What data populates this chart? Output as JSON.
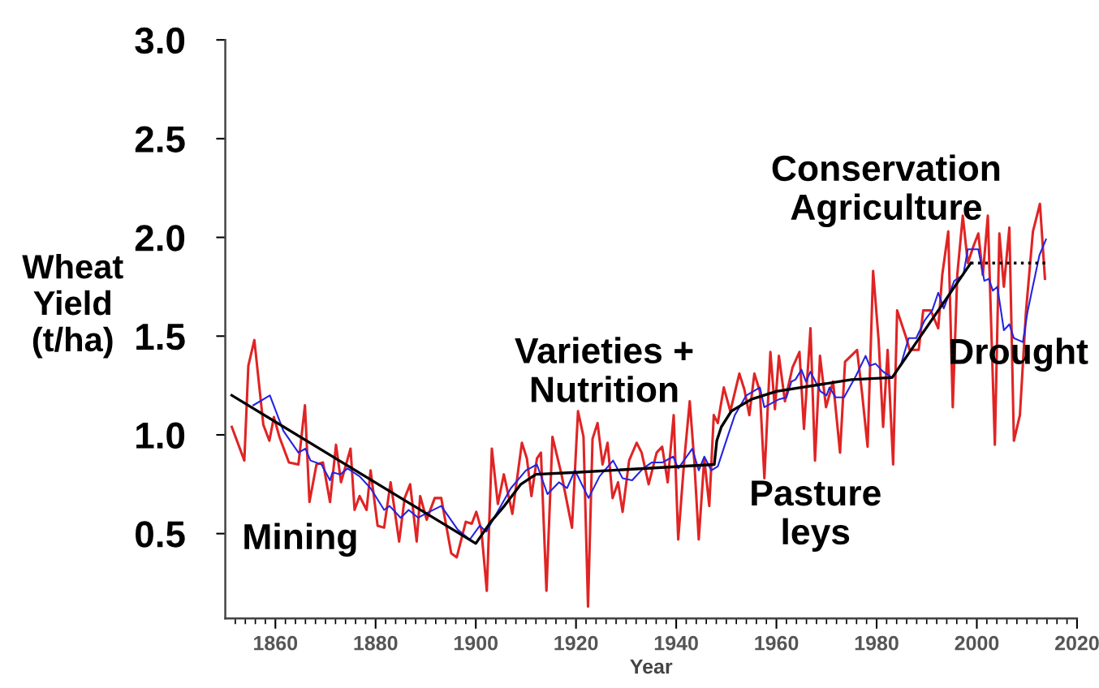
{
  "chart_data": {
    "type": "line",
    "xlabel": "Year",
    "ylabel": "Wheat\nYield\n(t/ha)",
    "xlim": [
      1850,
      2020
    ],
    "ylim": [
      0.07,
      3.0
    ],
    "xticks": [
      1860,
      1880,
      1900,
      1920,
      1940,
      1960,
      1980,
      2000,
      2020,
      {
        "value": 1852,
        "label": null
      },
      {
        "value": 1854,
        "label": null
      },
      {
        "value": 1856,
        "label": null
      },
      {
        "value": 1858,
        "label": null
      },
      {
        "value": 1862,
        "label": null
      },
      {
        "value": 1864,
        "label": null
      },
      {
        "value": 1866,
        "label": null
      },
      {
        "value": 1868,
        "label": null
      },
      {
        "value": 1870,
        "label": null
      },
      {
        "value": 1872,
        "label": null
      },
      {
        "value": 1874,
        "label": null
      },
      {
        "value": 1876,
        "label": null
      },
      {
        "value": 1878,
        "label": null
      },
      {
        "value": 1882,
        "label": null
      },
      {
        "value": 1884,
        "label": null
      },
      {
        "value": 1886,
        "label": null
      },
      {
        "value": 1888,
        "label": null
      },
      {
        "value": 1890,
        "label": null
      },
      {
        "value": 1892,
        "label": null
      },
      {
        "value": 1894,
        "label": null
      },
      {
        "value": 1896,
        "label": null
      },
      {
        "value": 1898,
        "label": null
      },
      {
        "value": 1902,
        "label": null
      },
      {
        "value": 1904,
        "label": null
      },
      {
        "value": 1906,
        "label": null
      },
      {
        "value": 1908,
        "label": null
      },
      {
        "value": 1910,
        "label": null
      },
      {
        "value": 1912,
        "label": null
      },
      {
        "value": 1914,
        "label": null
      },
      {
        "value": 1916,
        "label": null
      },
      {
        "value": 1918,
        "label": null
      },
      {
        "value": 1922,
        "label": null
      },
      {
        "value": 1924,
        "label": null
      },
      {
        "value": 1926,
        "label": null
      },
      {
        "value": 1928,
        "label": null
      },
      {
        "value": 1930,
        "label": null
      },
      {
        "value": 1932,
        "label": null
      },
      {
        "value": 1934,
        "label": null
      },
      {
        "value": 1936,
        "label": null
      },
      {
        "value": 1938,
        "label": null
      },
      {
        "value": 1942,
        "label": null
      },
      {
        "value": 1944,
        "label": null
      },
      {
        "value": 1946,
        "label": null
      },
      {
        "value": 1948,
        "label": null
      },
      {
        "value": 1950,
        "label": null
      },
      {
        "value": 1952,
        "label": null
      },
      {
        "value": 1954,
        "label": null
      },
      {
        "value": 1956,
        "label": null
      },
      {
        "value": 1958,
        "label": null
      },
      {
        "value": 1962,
        "label": null
      },
      {
        "value": 1964,
        "label": null
      },
      {
        "value": 1966,
        "label": null
      },
      {
        "value": 1968,
        "label": null
      },
      {
        "value": 1970,
        "label": null
      },
      {
        "value": 1972,
        "label": null
      },
      {
        "value": 1974,
        "label": null
      },
      {
        "value": 1976,
        "label": null
      },
      {
        "value": 1978,
        "label": null
      },
      {
        "value": 1982,
        "label": null
      },
      {
        "value": 1984,
        "label": null
      },
      {
        "value": 1986,
        "label": null
      },
      {
        "value": 1988,
        "label": null
      },
      {
        "value": 1990,
        "label": null
      },
      {
        "value": 1992,
        "label": null
      },
      {
        "value": 1994,
        "label": null
      },
      {
        "value": 1996,
        "label": null
      },
      {
        "value": 1998,
        "label": null
      },
      {
        "value": 2002,
        "label": null
      },
      {
        "value": 2004,
        "label": null
      },
      {
        "value": 2006,
        "label": null
      },
      {
        "value": 2008,
        "label": null
      },
      {
        "value": 2010,
        "label": null
      },
      {
        "value": 2012,
        "label": null
      },
      {
        "value": 2014,
        "label": null
      },
      {
        "value": 2016,
        "label": null
      },
      {
        "value": 2018,
        "label": null
      }
    ],
    "yticks": [
      {
        "value": 0.5,
        "label": "0.5"
      },
      {
        "value": 1.0,
        "label": "1.0"
      },
      {
        "value": 1.5,
        "label": "1.5"
      },
      {
        "value": 2.0,
        "label": "2.0"
      },
      {
        "value": 2.5,
        "label": "2.5"
      },
      {
        "value": 3.0,
        "label": "3.0"
      }
    ],
    "grid": false,
    "legend": false,
    "marker": "none",
    "series": [
      {
        "color": "#e02424",
        "line_style": "solid",
        "x": [
          1851.3,
          1853.8,
          1854.6,
          1855.8,
          1857.6,
          1858.8,
          1859.7,
          1860.8,
          1862.7,
          1864.6,
          1865.9,
          1866.8,
          1868.2,
          1869.5,
          1870.9,
          1872.1,
          1873.1,
          1875.0,
          1875.8,
          1876.8,
          1878.2,
          1879.0,
          1880.4,
          1881.7,
          1883.0,
          1884.7,
          1885.8,
          1886.9,
          1888.2,
          1888.9,
          1890.2,
          1891.8,
          1893.1,
          1895.1,
          1896.2,
          1898.0,
          1899.2,
          1900.1,
          1901.1,
          1902.2,
          1903.2,
          1904.4,
          1905.6,
          1907.3,
          1909.2,
          1910.2,
          1911.1,
          1912.2,
          1913.0,
          1914.1,
          1915.3,
          1917.1,
          1919.2,
          1920.4,
          1921.5,
          1922.4,
          1923.3,
          1924.3,
          1925.3,
          1926.3,
          1927.3,
          1928.4,
          1929.3,
          1930.6,
          1932.1,
          1933.1,
          1934.5,
          1936.1,
          1937.2,
          1938.3,
          1939.5,
          1940.4,
          1941.6,
          1942.7,
          1943.6,
          1944.5,
          1945.6,
          1946.6,
          1947.5,
          1948.3,
          1949.5,
          1950.8,
          1952.6,
          1953.6,
          1954.6,
          1955.6,
          1956.7,
          1957.6,
          1958.8,
          1959.7,
          1960.5,
          1961.7,
          1963.2,
          1964.6,
          1965.5,
          1966.8,
          1967.7,
          1968.7,
          1969.9,
          1971.3,
          1972.7,
          1973.7,
          1976.1,
          1977.1,
          1978.2,
          1979.3,
          1980.4,
          1981.3,
          1982.2,
          1983.3,
          1984.1,
          1985.8,
          1986.6,
          1988.4,
          1989.3,
          1990.8,
          1992.3,
          1993.1,
          1994.3,
          1995.2,
          1996.1,
          1997.2,
          1998.2,
          1999.4,
          2000.3,
          2001.2,
          2002.2,
          2003.6,
          2004.5,
          2005.4,
          2006.5,
          2007.4,
          2008.6,
          2009.8,
          2011.2,
          2012.6,
          2013.6
        ],
        "values": [
          1.04,
          0.87,
          1.35,
          1.48,
          1.05,
          0.97,
          1.09,
          0.99,
          0.86,
          0.85,
          1.15,
          0.66,
          0.85,
          0.86,
          0.66,
          0.95,
          0.76,
          0.93,
          0.62,
          0.69,
          0.62,
          0.82,
          0.54,
          0.53,
          0.76,
          0.46,
          0.68,
          0.75,
          0.46,
          0.69,
          0.57,
          0.68,
          0.68,
          0.4,
          0.38,
          0.56,
          0.55,
          0.61,
          0.52,
          0.21,
          0.93,
          0.65,
          0.8,
          0.6,
          0.96,
          0.88,
          0.69,
          0.88,
          0.91,
          0.21,
          0.99,
          0.8,
          0.53,
          1.12,
          0.99,
          0.13,
          0.98,
          1.06,
          0.85,
          0.96,
          0.68,
          0.76,
          0.61,
          0.87,
          0.96,
          0.91,
          0.75,
          0.91,
          0.94,
          0.76,
          1.1,
          0.47,
          0.87,
          1.17,
          0.87,
          0.47,
          0.88,
          0.64,
          1.1,
          1.06,
          1.24,
          1.12,
          1.31,
          1.23,
          1.1,
          1.31,
          1.22,
          0.78,
          1.42,
          1.13,
          1.4,
          1.17,
          1.34,
          1.42,
          1.03,
          1.54,
          0.87,
          1.4,
          1.14,
          1.27,
          0.91,
          1.37,
          1.43,
          1.21,
          0.94,
          1.83,
          1.48,
          1.04,
          1.43,
          0.85,
          1.63,
          1.5,
          1.43,
          1.43,
          1.63,
          1.63,
          1.54,
          1.81,
          2.03,
          1.14,
          1.81,
          2.11,
          1.87,
          1.96,
          2.02,
          1.81,
          2.11,
          0.95,
          2.02,
          1.75,
          2.05,
          0.97,
          1.1,
          1.62,
          2.03,
          2.17,
          1.79
        ]
      },
      {
        "color": "#2424e0",
        "line_style": "solid",
        "x": [
          1855.6,
          1858.9,
          1861.6,
          1864.6,
          1866.0,
          1867.0,
          1869.2,
          1870.9,
          1871.4,
          1873.0,
          1874.4,
          1876.8,
          1879.0,
          1881.7,
          1882.8,
          1885.0,
          1886.6,
          1888.5,
          1889.9,
          1893.1,
          1896.4,
          1898.8,
          1900.8,
          1902.1,
          1907.0,
          1910.0,
          1912.2,
          1914.3,
          1916.6,
          1918.2,
          1919.8,
          1922.5,
          1924.7,
          1925.7,
          1927.4,
          1929.3,
          1931.2,
          1933.4,
          1935.1,
          1937.2,
          1939.4,
          1940.4,
          1943.2,
          1944.5,
          1945.6,
          1947.0,
          1948.3,
          1950.5,
          1951.7,
          1954.0,
          1956.7,
          1957.6,
          1960.5,
          1962.0,
          1963.0,
          1963.8,
          1965.0,
          1965.9,
          1966.8,
          1968.8,
          1970.0,
          1970.6,
          1971.8,
          1973.5,
          1975.9,
          1977.8,
          1978.6,
          1979.8,
          1981.3,
          1983.1,
          1984.9,
          1986.4,
          1987.9,
          1989.6,
          1991.1,
          1992.3,
          1993.4,
          1995.5,
          1997.3,
          1998.2,
          2000.3,
          2001.5,
          2002.4,
          2003.2,
          2004.1,
          2005.4,
          2006.5,
          2007.4,
          2009.2,
          2010.1,
          2011.0,
          2012.5,
          2013.8
        ],
        "values": [
          1.15,
          1.2,
          1.02,
          0.91,
          0.93,
          0.87,
          0.85,
          0.77,
          0.81,
          0.8,
          0.83,
          0.79,
          0.73,
          0.62,
          0.64,
          0.58,
          0.62,
          0.58,
          0.6,
          0.64,
          0.52,
          0.47,
          0.54,
          0.51,
          0.73,
          0.82,
          0.85,
          0.7,
          0.76,
          0.73,
          0.82,
          0.68,
          0.79,
          0.82,
          0.87,
          0.78,
          0.77,
          0.83,
          0.86,
          0.86,
          0.89,
          0.83,
          0.93,
          0.82,
          0.89,
          0.82,
          0.84,
          1.01,
          1.1,
          1.2,
          1.24,
          1.14,
          1.18,
          1.19,
          1.27,
          1.28,
          1.33,
          1.27,
          1.32,
          1.22,
          1.2,
          1.24,
          1.19,
          1.19,
          1.3,
          1.4,
          1.35,
          1.36,
          1.32,
          1.29,
          1.36,
          1.49,
          1.49,
          1.58,
          1.63,
          1.72,
          1.64,
          1.78,
          1.81,
          1.94,
          1.94,
          1.78,
          1.79,
          1.73,
          1.75,
          1.53,
          1.56,
          1.49,
          1.47,
          1.62,
          1.73,
          1.91,
          1.99
        ]
      },
      {
        "color": "#000000",
        "line_style": "solid",
        "x": [
          1851.3,
          1900.0,
          1903.0,
          1905.7,
          1909.0,
          1912.0,
          1920.0,
          1947.6,
          1948.1,
          1949.0,
          1951.0,
          1955.0,
          1960.0,
          1975.0,
          1983.1,
          1998.8
        ],
        "values": [
          1.2,
          0.45,
          0.56,
          0.64,
          0.75,
          0.8,
          0.81,
          0.85,
          0.97,
          1.04,
          1.12,
          1.18,
          1.22,
          1.28,
          1.29,
          1.87
        ]
      },
      {
        "color": "#000000",
        "line_style": "dotted",
        "x": [
          1998.8,
          2014.0
        ],
        "values": [
          1.87,
          1.87
        ]
      }
    ],
    "annotations": [
      "Mining",
      "Varieties +\nNutrition",
      "Pasture\nleys",
      "Conservation\nAgriculture",
      "Drought"
    ]
  }
}
